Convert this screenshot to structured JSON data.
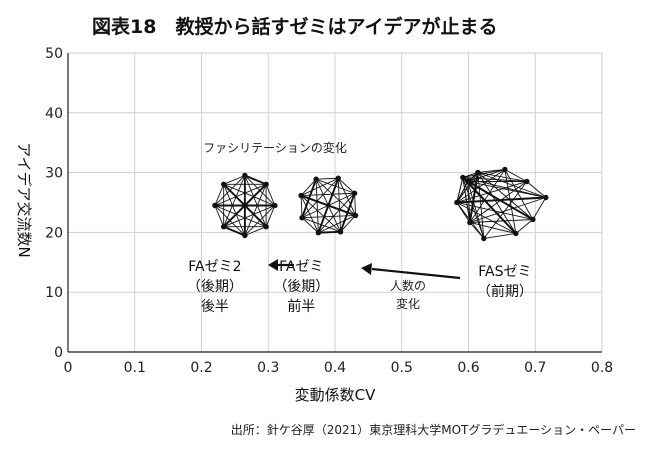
{
  "chart_data": {
    "type": "scatter",
    "title": "図表18　教授から話すゼミはアイデアが止まる",
    "xlabel": "変動係数CV",
    "ylabel": "アイデア交流数N",
    "xlim": [
      0,
      0.8
    ],
    "ylim": [
      0,
      50
    ],
    "x_ticks": [
      "0",
      "0.1",
      "0.2",
      "0.3",
      "0.4",
      "0.5",
      "0.6",
      "0.7",
      "0.8"
    ],
    "y_ticks": [
      "0",
      "10",
      "20",
      "30",
      "40",
      "50"
    ],
    "grid": true,
    "points": [
      {
        "x": 0.265,
        "y": 24.5,
        "label_lines": [
          "FAゼミ2",
          "（後期）",
          "後半"
        ]
      },
      {
        "x": 0.39,
        "y": 24.5,
        "label_lines": [
          "FAゼミ",
          "（後期）",
          "前半"
        ]
      },
      {
        "x": 0.62,
        "y": 24.5,
        "label_lines": [
          "FASゼミ",
          "（前期）"
        ]
      }
    ],
    "annotations": {
      "facilitation_change": "ファシリテーションの変化",
      "change_label_1": "人数の",
      "change_label_2": "変化"
    }
  },
  "source": "出所：針ケ谷厚（2021）東京理科大学MOTグラデュエーション・ペーパー"
}
